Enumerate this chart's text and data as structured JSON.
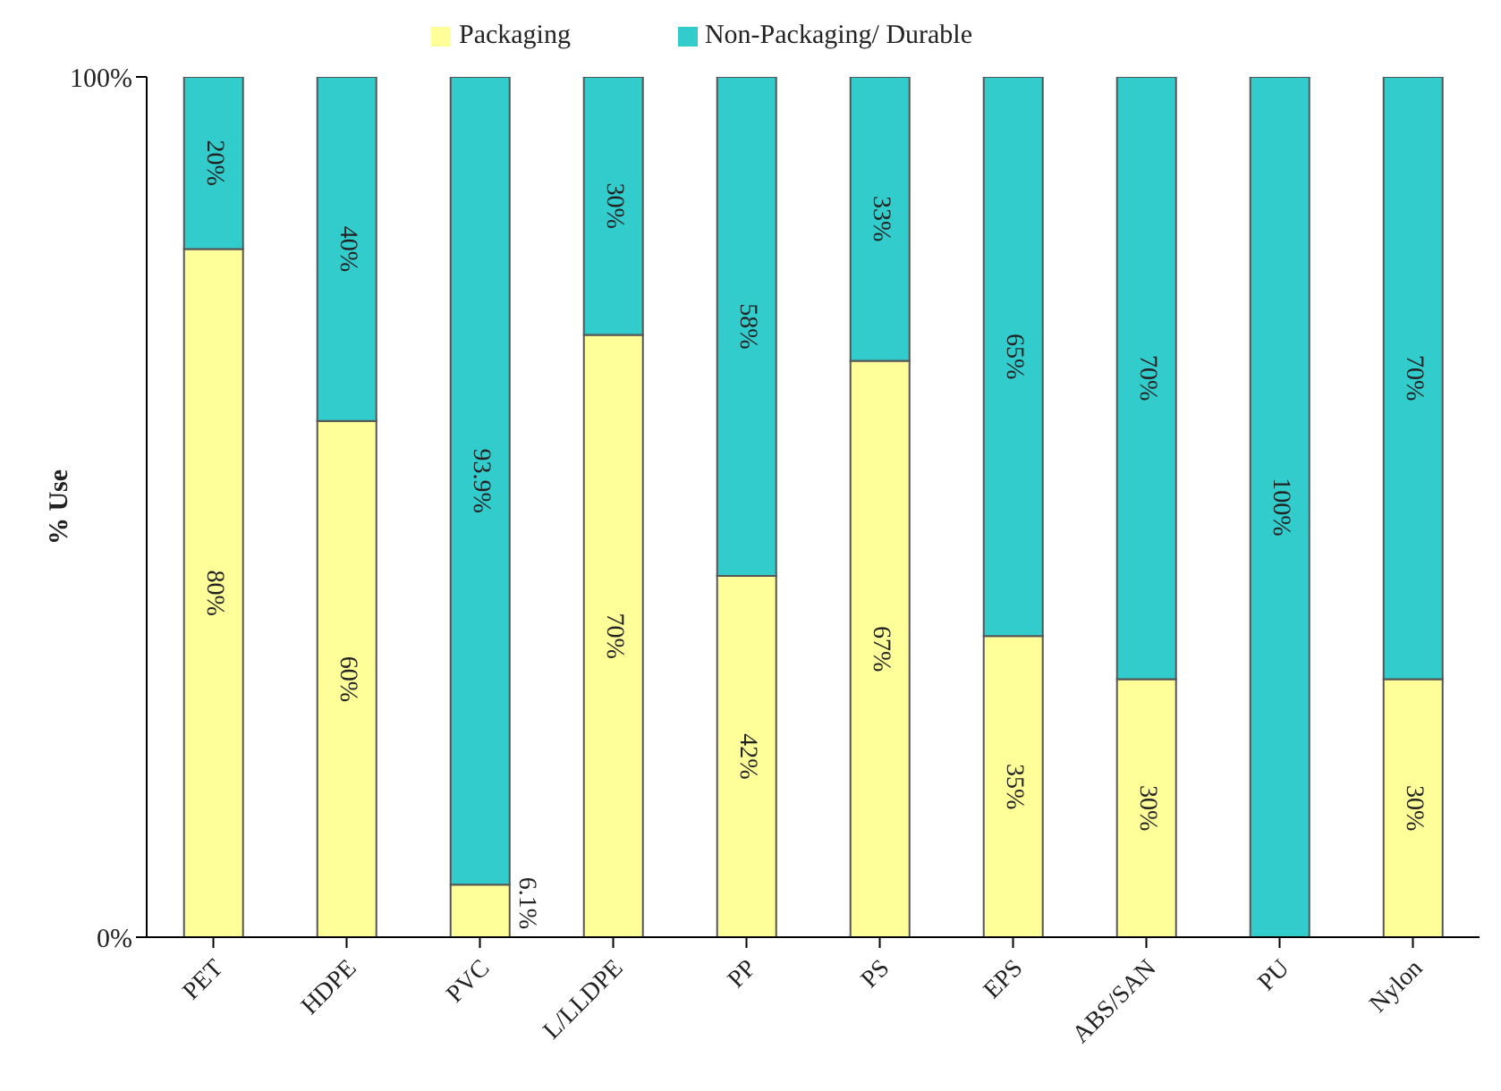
{
  "chart_data": {
    "type": "bar",
    "stacked": true,
    "ylabel": "% Use",
    "legend": "top",
    "categories": [
      "PET",
      "HDPE",
      "PVC",
      "L/LLDPE",
      "PP",
      "PS",
      "EPS",
      "ABS/SAN",
      "PU",
      "Nylon"
    ],
    "series": [
      {
        "name": "Packaging",
        "color": "#ffff99",
        "values": [
          80,
          60,
          6.1,
          70,
          42,
          67,
          35,
          30,
          0,
          30
        ],
        "value_labels": [
          "80%",
          "60%",
          "6.1%",
          "70%",
          "42%",
          "67%",
          "35%",
          "30%",
          null,
          "30%"
        ]
      },
      {
        "name": "Non-Packaging/ Durable",
        "color": "#33cccc",
        "values": [
          20,
          40,
          93.9,
          30,
          58,
          33,
          65,
          70,
          100,
          70
        ],
        "value_labels": [
          "20%",
          "40%",
          "93.9%",
          "30%",
          "58%",
          "33%",
          "65%",
          "70%",
          "100%",
          "70%"
        ]
      }
    ],
    "ylim": [
      0,
      100
    ],
    "yticks": [
      {
        "value": 0,
        "label": "0%"
      },
      {
        "value": 100,
        "label": "100%"
      }
    ]
  }
}
